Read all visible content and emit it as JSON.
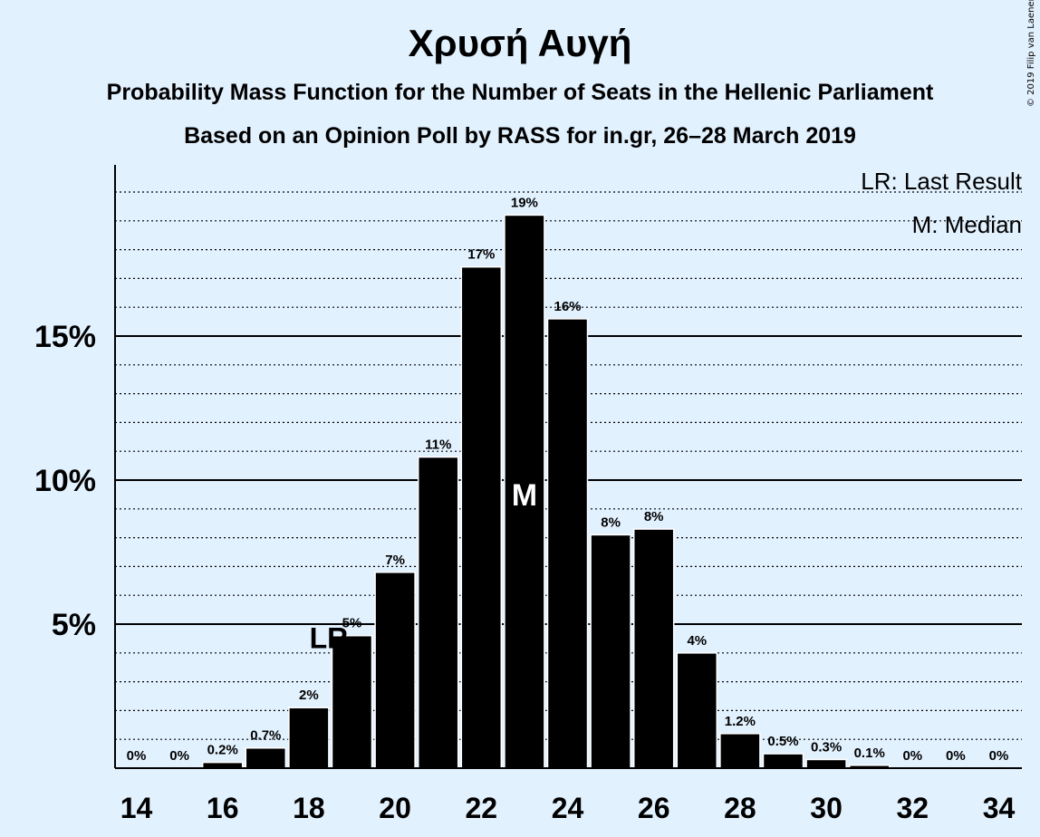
{
  "title": "Χρυσή Αυγή",
  "subtitle": "Probability Mass Function for the Number of Seats in the Hellenic Parliament",
  "caption": "Based on an Opinion Poll by RASS for in.gr, 26–28 March 2019",
  "copyright": "© 2019 Filip van Laenen",
  "legend": {
    "lr": "LR: Last Result",
    "m": "M: Median"
  },
  "colors": {
    "background": "#e2f1fe",
    "bar": "#000000",
    "bar_border": "#ffffff",
    "axis": "#000000"
  },
  "chart_data": {
    "type": "bar",
    "xlabel": "",
    "ylabel": "",
    "x": [
      14,
      15,
      16,
      17,
      18,
      19,
      20,
      21,
      22,
      23,
      24,
      25,
      26,
      27,
      28,
      29,
      30,
      31,
      32,
      33,
      34
    ],
    "values": [
      0,
      0,
      0.2,
      0.7,
      2.1,
      4.6,
      6.8,
      10.8,
      17.4,
      19.2,
      15.6,
      8.1,
      8.3,
      4.0,
      1.2,
      0.5,
      0.3,
      0.1,
      0,
      0,
      0
    ],
    "data_labels": [
      "0%",
      "0%",
      "0.2%",
      "0.7%",
      "2%",
      "5%",
      "7%",
      "11%",
      "17%",
      "19%",
      "16%",
      "8%",
      "8%",
      "4%",
      "1.2%",
      "0.5%",
      "0.3%",
      "0.1%",
      "0%",
      "0%",
      "0%"
    ],
    "x_ticks": [
      14,
      16,
      18,
      20,
      22,
      24,
      26,
      28,
      30,
      32,
      34
    ],
    "y_ticks": [
      5,
      10,
      15
    ],
    "y_tick_labels": [
      "5%",
      "10%",
      "15%"
    ],
    "ylim": [
      0,
      21
    ],
    "grid_minor_step": 1,
    "last_result_seat": 18,
    "median_seat": 23,
    "last_result_marker": "LR",
    "median_marker": "M",
    "legend_position": "top-right"
  }
}
